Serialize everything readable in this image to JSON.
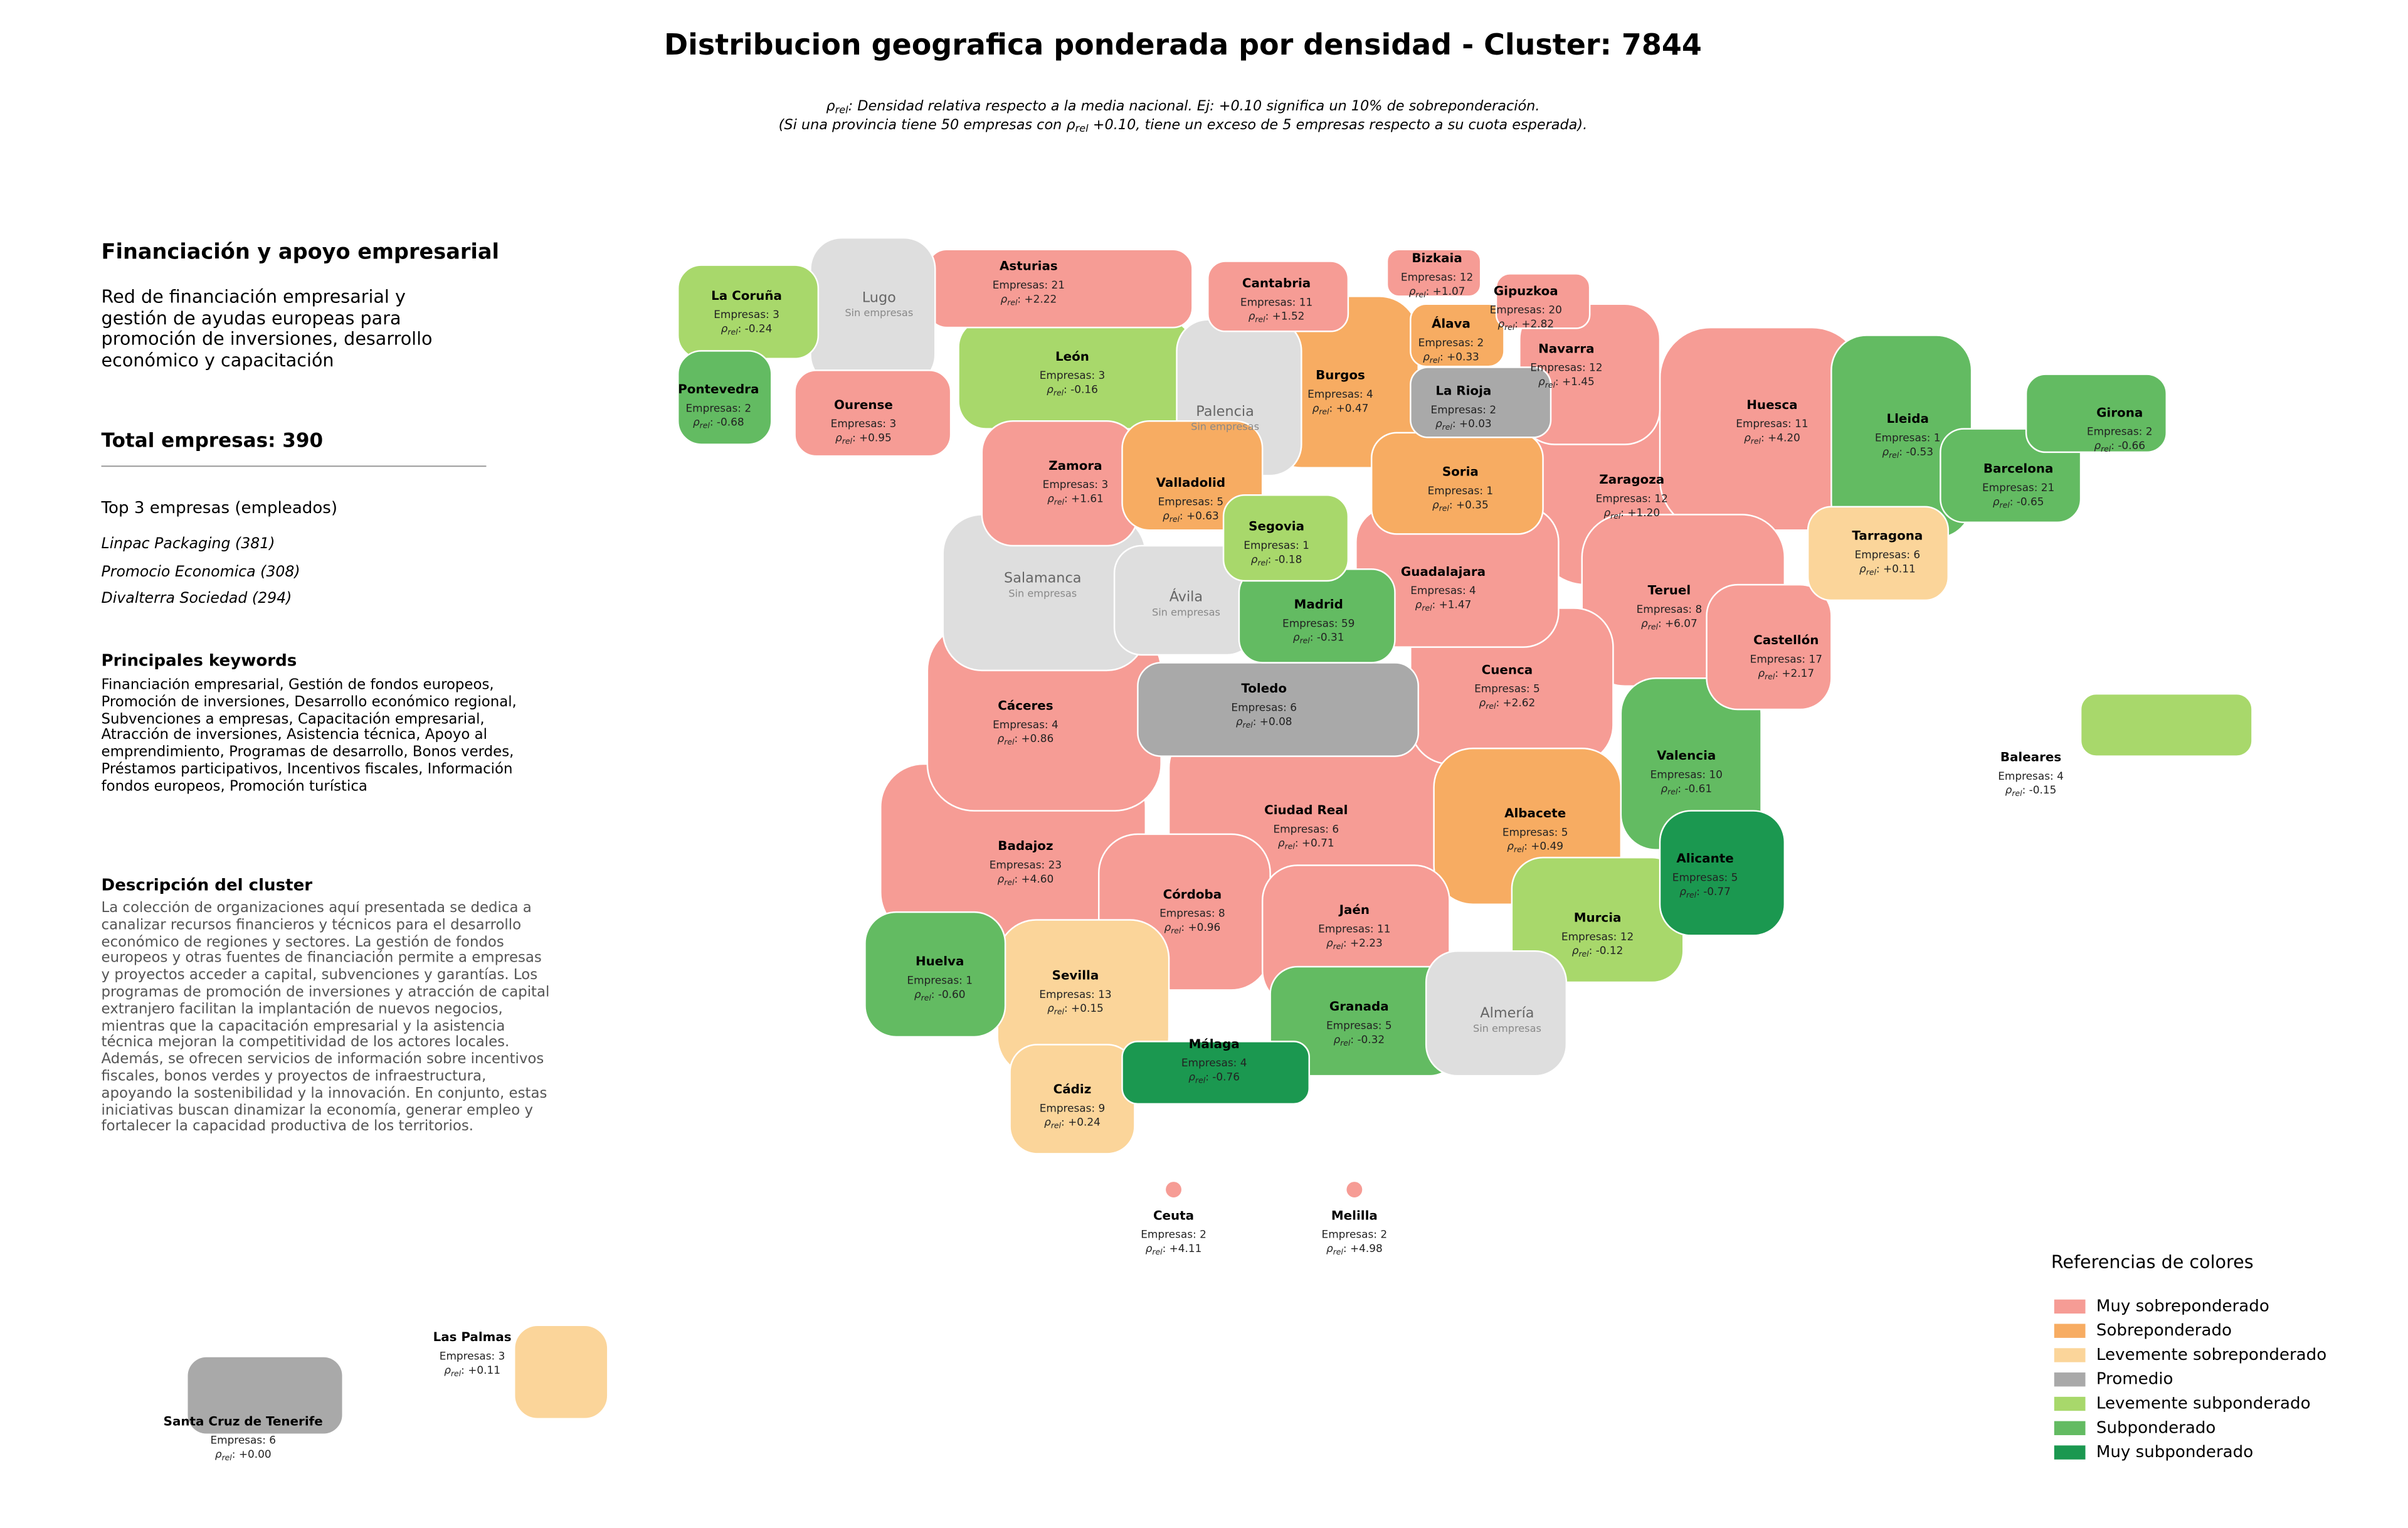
{
  "header": {
    "title": "Distribucion geografica ponderada por densidad - Cluster: 7844",
    "note_lines": [
      {
        "pre": "ρ",
        "sub": "rel",
        "post": ": Densidad relativa respecto a la media nacional. Ej: +0.10 significa un 10% de sobreponderación."
      },
      {
        "pre": "(Si una provincia tiene 50 empresas con ρ",
        "sub": "rel",
        "post": " +0.10, tiene un exceso de 5 empresas respecto a su cuota esperada)."
      }
    ]
  },
  "sidebar": {
    "heading": "Financiación y apoyo empresarial",
    "summary": "Red de financiación empresarial y gestión de ayudas europeas para promoción de inversiones, desarrollo económico y capacitación",
    "total": "Total empresas: 390",
    "top_title": "Top 3 empresas (empleados)",
    "top_companies": [
      "Linpac Packaging (381)",
      "Promocio Economica (308)",
      "Divalterra Sociedad (294)"
    ],
    "keywords_title": "Principales keywords",
    "keywords": "Financiación empresarial, Gestión de fondos europeos, Promoción de inversiones, Desarrollo económico regional, Subvenciones a empresas, Capacitación empresarial, Atracción de inversiones, Asistencia técnica, Apoyo al emprendimiento, Programas de desarrollo, Bonos verdes, Préstamos participativos, Incentivos fiscales, Información fondos europeos, Promoción turística",
    "description_title": "Descripción del cluster",
    "description": "La colección de organizaciones aquí presentada se dedica a canalizar recursos financieros y técnicos para el desarrollo económico de regiones y sectores. La gestión de fondos europeos y otras fuentes de financiación permite a empresas y proyectos acceder a capital, subvenciones y garantías. Los programas de promoción de inversiones y atracción de capital extranjero facilitan la implantación de nuevos negocios, mientras que la capacitación empresarial y la asistencia técnica mejoran la competitividad de los actores locales. Además, se ofrecen servicios de información sobre incentivos fiscales, bonos verdes y proyectos de infraestructura, apoyando la sostenibilidad y la innovación. En conjunto, estas iniciativas buscan dinamizar la economía, generar empleo y fortalecer la capacidad productiva de los territorios."
  },
  "labels": {
    "companies": "Empresas:",
    "rho": "ρ",
    "rho_sub": "rel",
    "no_companies": "Sin empresas"
  },
  "legend": {
    "title": "Referencias de colores",
    "items": [
      {
        "label": "Muy sobreponderado",
        "color": "#f69c95"
      },
      {
        "label": "Sobreponderado",
        "color": "#f7ac62"
      },
      {
        "label": "Levemente sobreponderado",
        "color": "#fbd59a"
      },
      {
        "label": "Promedio",
        "color": "#a9a9a9"
      },
      {
        "label": "Levemente subponderado",
        "color": "#a8d86b"
      },
      {
        "label": "Subponderado",
        "color": "#63bb62"
      },
      {
        "label": "Muy subponderado",
        "color": "#1b9850"
      }
    ]
  },
  "no_data_color": "#dedede",
  "provinces": [
    {
      "name": "La Coruña",
      "companies": 3,
      "rho": "-0.24",
      "level": 4
    },
    {
      "name": "Lugo"
    },
    {
      "name": "Asturias",
      "companies": 21,
      "rho": "+2.22",
      "level": 0
    },
    {
      "name": "Cantabria",
      "companies": 11,
      "rho": "+1.52",
      "level": 0
    },
    {
      "name": "Bizkaia",
      "companies": 12,
      "rho": "+1.07",
      "level": 0
    },
    {
      "name": "Gipuzkoa",
      "companies": 20,
      "rho": "+2.82",
      "level": 0
    },
    {
      "name": "Álava",
      "companies": 2,
      "rho": "+0.33",
      "level": 1
    },
    {
      "name": "Navarra",
      "companies": 12,
      "rho": "+1.45",
      "level": 0
    },
    {
      "name": "Pontevedra",
      "companies": 2,
      "rho": "-0.68",
      "level": 5
    },
    {
      "name": "Ourense",
      "companies": 3,
      "rho": "+0.95",
      "level": 0
    },
    {
      "name": "León",
      "companies": 3,
      "rho": "-0.16",
      "level": 4
    },
    {
      "name": "Palencia"
    },
    {
      "name": "Burgos",
      "companies": 4,
      "rho": "+0.47",
      "level": 1
    },
    {
      "name": "La Rioja",
      "companies": 2,
      "rho": "+0.03",
      "level": 3
    },
    {
      "name": "Huesca",
      "companies": 11,
      "rho": "+4.20",
      "level": 0
    },
    {
      "name": "Lleida",
      "companies": 1,
      "rho": "-0.53",
      "level": 5
    },
    {
      "name": "Girona",
      "companies": 2,
      "rho": "-0.66",
      "level": 5
    },
    {
      "name": "Barcelona",
      "companies": 21,
      "rho": "-0.65",
      "level": 5
    },
    {
      "name": "Zamora",
      "companies": 3,
      "rho": "+1.61",
      "level": 0
    },
    {
      "name": "Valladolid",
      "companies": 5,
      "rho": "+0.63",
      "level": 1
    },
    {
      "name": "Soria",
      "companies": 1,
      "rho": "+0.35",
      "level": 1
    },
    {
      "name": "Zaragoza",
      "companies": 12,
      "rho": "+1.20",
      "level": 0
    },
    {
      "name": "Segovia",
      "companies": 1,
      "rho": "-0.18",
      "level": 4
    },
    {
      "name": "Tarragona",
      "companies": 6,
      "rho": "+0.11",
      "level": 2
    },
    {
      "name": "Salamanca"
    },
    {
      "name": "Ávila"
    },
    {
      "name": "Guadalajara",
      "companies": 4,
      "rho": "+1.47",
      "level": 0
    },
    {
      "name": "Madrid",
      "companies": 59,
      "rho": "-0.31",
      "level": 5
    },
    {
      "name": "Teruel",
      "companies": 8,
      "rho": "+6.07",
      "level": 0
    },
    {
      "name": "Castellón",
      "companies": 17,
      "rho": "+2.17",
      "level": 0
    },
    {
      "name": "Cuenca",
      "companies": 5,
      "rho": "+2.62",
      "level": 0
    },
    {
      "name": "Toledo",
      "companies": 6,
      "rho": "+0.08",
      "level": 3
    },
    {
      "name": "Cáceres",
      "companies": 4,
      "rho": "+0.86",
      "level": 0
    },
    {
      "name": "Valencia",
      "companies": 10,
      "rho": "-0.61",
      "level": 5
    },
    {
      "name": "Ciudad Real",
      "companies": 6,
      "rho": "+0.71",
      "level": 0
    },
    {
      "name": "Albacete",
      "companies": 5,
      "rho": "+0.49",
      "level": 1
    },
    {
      "name": "Badajoz",
      "companies": 23,
      "rho": "+4.60",
      "level": 0
    },
    {
      "name": "Alicante",
      "companies": 5,
      "rho": "-0.77",
      "level": 6
    },
    {
      "name": "Córdoba",
      "companies": 8,
      "rho": "+0.96",
      "level": 0
    },
    {
      "name": "Jaén",
      "companies": 11,
      "rho": "+2.23",
      "level": 0
    },
    {
      "name": "Murcia",
      "companies": 12,
      "rho": "-0.12",
      "level": 4
    },
    {
      "name": "Huelva",
      "companies": 1,
      "rho": "-0.60",
      "level": 5
    },
    {
      "name": "Sevilla",
      "companies": 13,
      "rho": "+0.15",
      "level": 2
    },
    {
      "name": "Granada",
      "companies": 5,
      "rho": "-0.32",
      "level": 5
    },
    {
      "name": "Almería"
    },
    {
      "name": "Málaga",
      "companies": 4,
      "rho": "-0.76",
      "level": 6
    },
    {
      "name": "Cádiz",
      "companies": 9,
      "rho": "+0.24",
      "level": 2
    },
    {
      "name": "Baleares",
      "companies": 4,
      "rho": "-0.15",
      "level": 4
    },
    {
      "name": "Ceuta",
      "companies": 2,
      "rho": "+4.11",
      "level": 0
    },
    {
      "name": "Melilla",
      "companies": 2,
      "rho": "+4.98",
      "level": 0
    },
    {
      "name": "Las Palmas",
      "companies": 3,
      "rho": "+0.11",
      "level": 2
    },
    {
      "name": "Santa Cruz de Tenerife",
      "companies": 6,
      "rho": "+0.00",
      "level": 3
    }
  ]
}
